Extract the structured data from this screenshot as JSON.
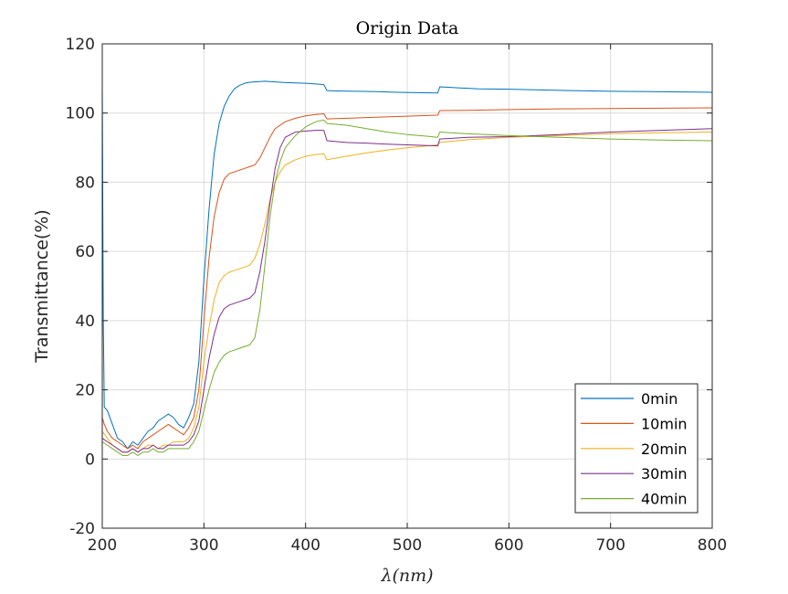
{
  "chart_data": {
    "type": "line",
    "title": "Origin Data",
    "xlabel": "λ(nm)",
    "ylabel": "Transmittance(%)",
    "xlim": [
      200,
      800
    ],
    "ylim": [
      -20,
      120
    ],
    "xticks": [
      200,
      300,
      400,
      500,
      600,
      700,
      800
    ],
    "yticks": [
      -20,
      0,
      20,
      40,
      60,
      80,
      100,
      120
    ],
    "grid": true,
    "legend_position": "bottom-right",
    "series": [
      {
        "name": "0min",
        "color": "#0072BD",
        "points": [
          [
            200,
            108
          ],
          [
            201,
            40
          ],
          [
            202,
            15
          ],
          [
            205,
            14
          ],
          [
            210,
            10
          ],
          [
            215,
            6
          ],
          [
            220,
            5
          ],
          [
            225,
            3
          ],
          [
            230,
            5
          ],
          [
            235,
            4
          ],
          [
            240,
            6
          ],
          [
            245,
            8
          ],
          [
            250,
            9
          ],
          [
            255,
            11
          ],
          [
            260,
            12
          ],
          [
            265,
            13
          ],
          [
            270,
            12
          ],
          [
            275,
            10
          ],
          [
            280,
            9
          ],
          [
            285,
            12
          ],
          [
            290,
            16
          ],
          [
            295,
            28
          ],
          [
            300,
            52
          ],
          [
            305,
            72
          ],
          [
            310,
            88
          ],
          [
            315,
            97
          ],
          [
            320,
            102
          ],
          [
            325,
            105
          ],
          [
            330,
            107
          ],
          [
            335,
            108
          ],
          [
            340,
            108.6
          ],
          [
            345,
            108.9
          ],
          [
            350,
            109
          ],
          [
            360,
            109.2
          ],
          [
            370,
            109
          ],
          [
            380,
            108.8
          ],
          [
            390,
            108.7
          ],
          [
            400,
            108.6
          ],
          [
            410,
            108.4
          ],
          [
            418,
            108.2
          ],
          [
            421,
            106.5
          ],
          [
            430,
            106.4
          ],
          [
            450,
            106.3
          ],
          [
            470,
            106.2
          ],
          [
            490,
            106
          ],
          [
            510,
            105.9
          ],
          [
            530,
            105.8
          ],
          [
            532,
            107.6
          ],
          [
            550,
            107.3
          ],
          [
            570,
            107
          ],
          [
            600,
            106.9
          ],
          [
            630,
            106.7
          ],
          [
            660,
            106.5
          ],
          [
            700,
            106.3
          ],
          [
            740,
            106.2
          ],
          [
            770,
            106.1
          ],
          [
            800,
            106
          ]
        ]
      },
      {
        "name": "10min",
        "color": "#D95319",
        "points": [
          [
            200,
            12
          ],
          [
            202,
            10
          ],
          [
            205,
            8
          ],
          [
            210,
            6
          ],
          [
            215,
            5
          ],
          [
            220,
            4
          ],
          [
            225,
            3
          ],
          [
            230,
            4
          ],
          [
            235,
            3
          ],
          [
            240,
            5
          ],
          [
            245,
            6
          ],
          [
            250,
            7
          ],
          [
            255,
            8
          ],
          [
            260,
            9
          ],
          [
            265,
            10
          ],
          [
            270,
            9
          ],
          [
            275,
            8
          ],
          [
            280,
            7
          ],
          [
            285,
            9
          ],
          [
            290,
            12
          ],
          [
            295,
            20
          ],
          [
            300,
            40
          ],
          [
            305,
            58
          ],
          [
            310,
            70
          ],
          [
            315,
            77
          ],
          [
            320,
            81
          ],
          [
            325,
            82.5
          ],
          [
            330,
            83
          ],
          [
            335,
            83.5
          ],
          [
            340,
            84
          ],
          [
            345,
            84.5
          ],
          [
            350,
            85
          ],
          [
            355,
            87
          ],
          [
            360,
            90
          ],
          [
            365,
            93
          ],
          [
            370,
            95.5
          ],
          [
            380,
            97.5
          ],
          [
            390,
            98.5
          ],
          [
            400,
            99.2
          ],
          [
            410,
            99.6
          ],
          [
            418,
            99.8
          ],
          [
            421,
            98.3
          ],
          [
            440,
            98.5
          ],
          [
            460,
            98.7
          ],
          [
            480,
            98.9
          ],
          [
            500,
            99.1
          ],
          [
            520,
            99.3
          ],
          [
            530,
            99.4
          ],
          [
            532,
            100.7
          ],
          [
            560,
            100.8
          ],
          [
            600,
            101
          ],
          [
            650,
            101.2
          ],
          [
            700,
            101.3
          ],
          [
            750,
            101.4
          ],
          [
            800,
            101.5
          ]
        ]
      },
      {
        "name": "20min",
        "color": "#EDB120",
        "points": [
          [
            200,
            8
          ],
          [
            205,
            6
          ],
          [
            210,
            4
          ],
          [
            215,
            3
          ],
          [
            220,
            2
          ],
          [
            225,
            2
          ],
          [
            230,
            3
          ],
          [
            235,
            2
          ],
          [
            240,
            3
          ],
          [
            245,
            4
          ],
          [
            250,
            4
          ],
          [
            255,
            3
          ],
          [
            260,
            4
          ],
          [
            265,
            4
          ],
          [
            270,
            5
          ],
          [
            275,
            5
          ],
          [
            280,
            5
          ],
          [
            285,
            6
          ],
          [
            290,
            9
          ],
          [
            295,
            15
          ],
          [
            300,
            28
          ],
          [
            305,
            38
          ],
          [
            310,
            46
          ],
          [
            315,
            51
          ],
          [
            320,
            53
          ],
          [
            325,
            54
          ],
          [
            330,
            54.5
          ],
          [
            335,
            55
          ],
          [
            340,
            55.5
          ],
          [
            345,
            56
          ],
          [
            350,
            58
          ],
          [
            355,
            62
          ],
          [
            360,
            68
          ],
          [
            365,
            75
          ],
          [
            370,
            80
          ],
          [
            375,
            83
          ],
          [
            380,
            85
          ],
          [
            390,
            86.5
          ],
          [
            400,
            87.5
          ],
          [
            410,
            88
          ],
          [
            418,
            88.2
          ],
          [
            421,
            86.5
          ],
          [
            440,
            87.5
          ],
          [
            460,
            88.5
          ],
          [
            480,
            89.3
          ],
          [
            500,
            90
          ],
          [
            520,
            90.5
          ],
          [
            530,
            90.8
          ],
          [
            532,
            91.5
          ],
          [
            560,
            92.3
          ],
          [
            600,
            93
          ],
          [
            650,
            93.5
          ],
          [
            700,
            94
          ],
          [
            750,
            94.3
          ],
          [
            800,
            94.5
          ]
        ]
      },
      {
        "name": "30min",
        "color": "#7E2F8E",
        "points": [
          [
            200,
            6
          ],
          [
            205,
            5
          ],
          [
            210,
            4
          ],
          [
            215,
            3
          ],
          [
            220,
            2
          ],
          [
            225,
            2
          ],
          [
            230,
            3
          ],
          [
            235,
            2
          ],
          [
            240,
            3
          ],
          [
            245,
            3
          ],
          [
            250,
            4
          ],
          [
            255,
            3
          ],
          [
            260,
            3
          ],
          [
            265,
            4
          ],
          [
            270,
            4
          ],
          [
            275,
            4
          ],
          [
            280,
            4
          ],
          [
            285,
            5
          ],
          [
            290,
            7
          ],
          [
            295,
            11
          ],
          [
            300,
            20
          ],
          [
            305,
            29
          ],
          [
            310,
            36
          ],
          [
            315,
            41
          ],
          [
            320,
            43.5
          ],
          [
            325,
            44.5
          ],
          [
            330,
            45
          ],
          [
            335,
            45.5
          ],
          [
            340,
            46
          ],
          [
            345,
            46.5
          ],
          [
            350,
            48
          ],
          [
            355,
            54
          ],
          [
            360,
            63
          ],
          [
            365,
            74
          ],
          [
            370,
            84
          ],
          [
            375,
            90
          ],
          [
            380,
            93
          ],
          [
            390,
            94.5
          ],
          [
            400,
            94.8
          ],
          [
            410,
            95
          ],
          [
            418,
            95
          ],
          [
            421,
            92
          ],
          [
            440,
            91.5
          ],
          [
            460,
            91.3
          ],
          [
            480,
            91
          ],
          [
            500,
            90.8
          ],
          [
            520,
            90.6
          ],
          [
            530,
            90.5
          ],
          [
            532,
            92.5
          ],
          [
            560,
            93
          ],
          [
            600,
            93.2
          ],
          [
            650,
            93.8
          ],
          [
            700,
            94.5
          ],
          [
            750,
            95
          ],
          [
            800,
            95.5
          ]
        ]
      },
      {
        "name": "40min",
        "color": "#77AC30",
        "points": [
          [
            200,
            5
          ],
          [
            205,
            4
          ],
          [
            210,
            3
          ],
          [
            215,
            2
          ],
          [
            220,
            1
          ],
          [
            225,
            1
          ],
          [
            230,
            2
          ],
          [
            235,
            1
          ],
          [
            240,
            2
          ],
          [
            245,
            2
          ],
          [
            250,
            3
          ],
          [
            255,
            2
          ],
          [
            260,
            2
          ],
          [
            265,
            3
          ],
          [
            270,
            3
          ],
          [
            275,
            3
          ],
          [
            280,
            3
          ],
          [
            285,
            3
          ],
          [
            290,
            5
          ],
          [
            295,
            8
          ],
          [
            300,
            14
          ],
          [
            305,
            20
          ],
          [
            310,
            25
          ],
          [
            315,
            28
          ],
          [
            320,
            30
          ],
          [
            325,
            31
          ],
          [
            330,
            31.5
          ],
          [
            335,
            32
          ],
          [
            340,
            32.5
          ],
          [
            345,
            33
          ],
          [
            350,
            35
          ],
          [
            355,
            43
          ],
          [
            360,
            56
          ],
          [
            365,
            70
          ],
          [
            370,
            80
          ],
          [
            375,
            86
          ],
          [
            380,
            90
          ],
          [
            390,
            93.5
          ],
          [
            400,
            96
          ],
          [
            410,
            97.5
          ],
          [
            418,
            98
          ],
          [
            421,
            97
          ],
          [
            440,
            96.5
          ],
          [
            460,
            95.5
          ],
          [
            480,
            94.5
          ],
          [
            500,
            93.8
          ],
          [
            520,
            93.3
          ],
          [
            530,
            93
          ],
          [
            532,
            94.5
          ],
          [
            560,
            94
          ],
          [
            600,
            93.5
          ],
          [
            650,
            93
          ],
          [
            700,
            92.5
          ],
          [
            750,
            92.2
          ],
          [
            800,
            92
          ]
        ]
      }
    ]
  }
}
